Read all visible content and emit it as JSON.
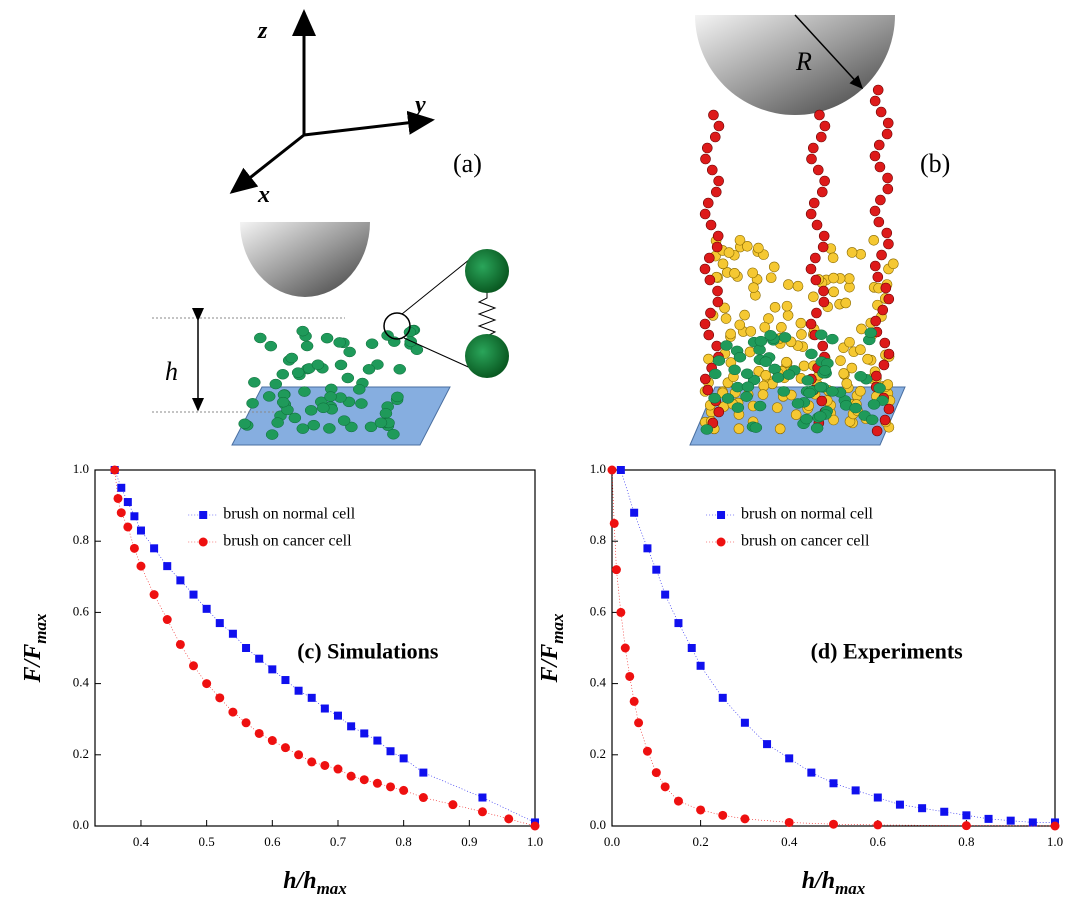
{
  "panel_a": {
    "axis_labels": {
      "z": "z",
      "y": "y",
      "x": "x"
    },
    "label": "(a)",
    "height_label": "h"
  },
  "panel_b": {
    "radius_label": "R",
    "label": "(b)"
  },
  "chart_data": [
    {
      "type": "scatter",
      "annotation": "(c) Simulations",
      "xlabel": "h/h",
      "xlabel_sub": "max",
      "ylabel": "F/F",
      "ylabel_sub": "max",
      "xlim": [
        0.33,
        1.0
      ],
      "ylim": [
        0,
        1.0
      ],
      "xticks": [
        0.4,
        0.5,
        0.6,
        0.7,
        0.8,
        0.9,
        {
          "value": 1.0,
          "label": "1.0"
        }
      ],
      "yticks": [
        {
          "value": 0,
          "label": "0.0"
        },
        0.2,
        0.4,
        0.6,
        0.8,
        {
          "value": 1.0,
          "label": "1.0"
        }
      ],
      "legend": "upper-center",
      "series": [
        {
          "name": "brush on normal cell",
          "color": "#1010ee",
          "marker": "square",
          "x": [
            0.36,
            0.37,
            0.38,
            0.39,
            0.4,
            0.42,
            0.44,
            0.46,
            0.48,
            0.5,
            0.52,
            0.54,
            0.56,
            0.58,
            0.6,
            0.62,
            0.64,
            0.66,
            0.68,
            0.7,
            0.72,
            0.74,
            0.76,
            0.78,
            0.8,
            0.83,
            0.92,
            1.0
          ],
          "values": [
            1.0,
            0.95,
            0.91,
            0.87,
            0.83,
            0.78,
            0.73,
            0.69,
            0.65,
            0.61,
            0.57,
            0.54,
            0.5,
            0.47,
            0.44,
            0.41,
            0.38,
            0.36,
            0.33,
            0.31,
            0.28,
            0.26,
            0.24,
            0.21,
            0.19,
            0.15,
            0.08,
            0.01
          ]
        },
        {
          "name": "brush on cancer cell",
          "color": "#ee1010",
          "marker": "circle",
          "x": [
            0.36,
            0.365,
            0.37,
            0.38,
            0.39,
            0.4,
            0.42,
            0.44,
            0.46,
            0.48,
            0.5,
            0.52,
            0.54,
            0.56,
            0.58,
            0.6,
            0.62,
            0.64,
            0.66,
            0.68,
            0.7,
            0.72,
            0.74,
            0.76,
            0.78,
            0.8,
            0.83,
            0.875,
            0.92,
            0.96,
            1.0
          ],
          "values": [
            1.0,
            0.92,
            0.88,
            0.84,
            0.78,
            0.73,
            0.65,
            0.58,
            0.51,
            0.45,
            0.4,
            0.36,
            0.32,
            0.29,
            0.26,
            0.24,
            0.22,
            0.2,
            0.18,
            0.17,
            0.16,
            0.14,
            0.13,
            0.12,
            0.11,
            0.1,
            0.08,
            0.06,
            0.04,
            0.02,
            0.0
          ]
        }
      ]
    },
    {
      "type": "scatter",
      "annotation": "(d) Experiments",
      "xlabel": "h/h",
      "xlabel_sub": "max",
      "ylabel": "F/F",
      "ylabel_sub": "max",
      "xlim": [
        0,
        1.0
      ],
      "ylim": [
        0,
        1.0
      ],
      "xticks": [
        {
          "value": 0,
          "label": "0.0"
        },
        0.2,
        0.4,
        0.6,
        0.8,
        {
          "value": 1.0,
          "label": "1.0"
        }
      ],
      "yticks": [
        {
          "value": 0,
          "label": "0.0"
        },
        0.2,
        0.4,
        0.6,
        0.8,
        {
          "value": 1.0,
          "label": "1.0"
        }
      ],
      "legend": "upper-center",
      "series": [
        {
          "name": "brush on normal cell",
          "color": "#1010ee",
          "marker": "square",
          "x": [
            0.02,
            0.05,
            0.08,
            0.1,
            0.12,
            0.15,
            0.18,
            0.2,
            0.25,
            0.3,
            0.35,
            0.4,
            0.45,
            0.5,
            0.55,
            0.6,
            0.65,
            0.7,
            0.75,
            0.8,
            0.85,
            0.9,
            0.95,
            1.0
          ],
          "values": [
            1.0,
            0.88,
            0.78,
            0.72,
            0.65,
            0.57,
            0.5,
            0.45,
            0.36,
            0.29,
            0.23,
            0.19,
            0.15,
            0.12,
            0.1,
            0.08,
            0.06,
            0.05,
            0.04,
            0.03,
            0.02,
            0.015,
            0.01,
            0.01
          ]
        },
        {
          "name": "brush on cancer cell",
          "color": "#ee1010",
          "marker": "circle",
          "x": [
            0,
            0.005,
            0.01,
            0.02,
            0.03,
            0.04,
            0.05,
            0.06,
            0.08,
            0.1,
            0.12,
            0.15,
            0.2,
            0.25,
            0.3,
            0.4,
            0.5,
            0.6,
            0.8,
            1.0
          ],
          "values": [
            1.0,
            0.85,
            0.72,
            0.6,
            0.5,
            0.42,
            0.35,
            0.29,
            0.21,
            0.15,
            0.11,
            0.07,
            0.045,
            0.03,
            0.02,
            0.01,
            0.005,
            0.003,
            0.001,
            0.0
          ]
        }
      ]
    }
  ]
}
